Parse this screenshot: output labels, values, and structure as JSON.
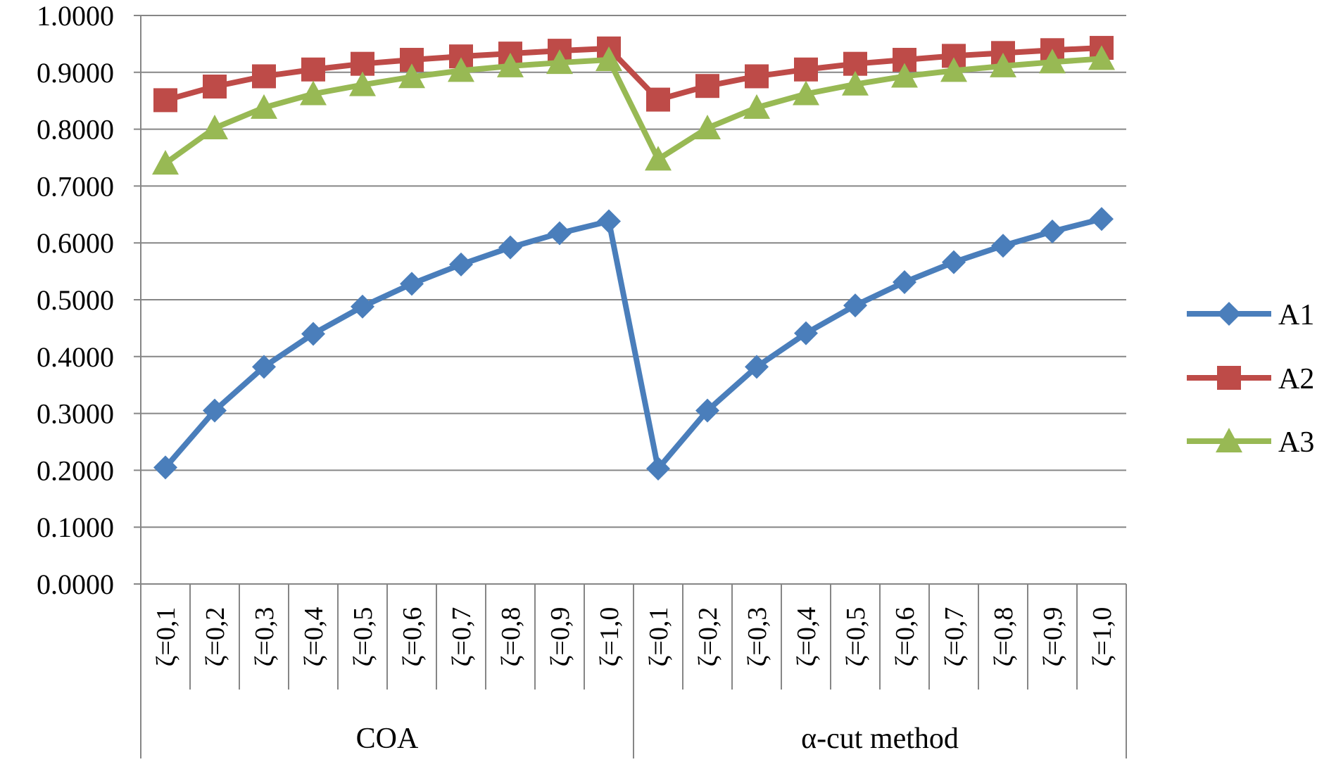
{
  "chart_data": {
    "type": "line",
    "groups": [
      {
        "label": "COA",
        "categories": [
          "ζ=0,1",
          "ζ=0,2",
          "ζ=0,3",
          "ζ=0,4",
          "ζ=0,5",
          "ζ=0,6",
          "ζ=0,7",
          "ζ=0,8",
          "ζ=0,9",
          "ζ=1,0"
        ]
      },
      {
        "label": "α-cut method",
        "categories": [
          "ζ=0,1",
          "ζ=0,2",
          "ζ=0,3",
          "ζ=0,4",
          "ζ=0,5",
          "ζ=0,6",
          "ζ=0,7",
          "ζ=0,8",
          "ζ=0,9",
          "ζ=1,0"
        ]
      }
    ],
    "ylim": [
      0,
      1
    ],
    "yticks": [
      "0.0000",
      "0.1000",
      "0.2000",
      "0.3000",
      "0.4000",
      "0.5000",
      "0.6000",
      "0.7000",
      "0.8000",
      "0.9000",
      "1.0000"
    ],
    "grid": true,
    "legend_position": "right",
    "series": [
      {
        "name": "A1",
        "color": "#4a7ebb",
        "marker": "diamond",
        "values": [
          0.205,
          0.305,
          0.382,
          0.44,
          0.488,
          0.528,
          0.562,
          0.592,
          0.617,
          0.638,
          0.203,
          0.305,
          0.382,
          0.441,
          0.49,
          0.531,
          0.566,
          0.595,
          0.62,
          0.642
        ]
      },
      {
        "name": "A2",
        "color": "#be4b48",
        "marker": "square",
        "values": [
          0.851,
          0.875,
          0.893,
          0.905,
          0.915,
          0.922,
          0.928,
          0.933,
          0.938,
          0.942,
          0.852,
          0.876,
          0.893,
          0.905,
          0.915,
          0.922,
          0.929,
          0.934,
          0.939,
          0.943
        ]
      },
      {
        "name": "A3",
        "color": "#98b954",
        "marker": "triangle",
        "values": [
          0.74,
          0.802,
          0.838,
          0.862,
          0.878,
          0.892,
          0.903,
          0.911,
          0.917,
          0.922,
          0.747,
          0.802,
          0.838,
          0.862,
          0.879,
          0.893,
          0.903,
          0.911,
          0.918,
          0.924
        ]
      }
    ]
  }
}
